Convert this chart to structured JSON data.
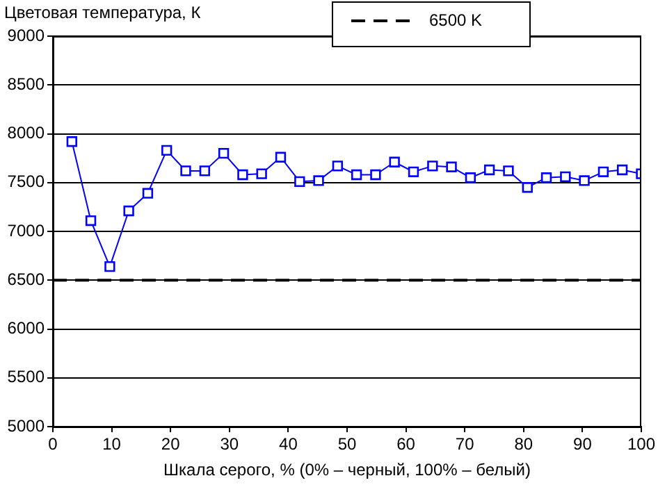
{
  "chart_data": {
    "type": "line",
    "ylabel": "Цветовая температура, К",
    "xlabel": "Шкала серого, % (0% – черный, 100% – белый)",
    "x": [
      3.23,
      6.45,
      9.68,
      12.9,
      16.13,
      19.35,
      22.58,
      25.81,
      29.03,
      32.26,
      35.48,
      38.71,
      41.94,
      45.16,
      48.39,
      51.61,
      54.84,
      58.06,
      61.29,
      64.52,
      67.74,
      70.97,
      74.19,
      77.42,
      80.65,
      83.87,
      87.1,
      90.32,
      93.55,
      96.77,
      100
    ],
    "series": [
      {
        "color": "#0000ff",
        "values": [
          7920,
          7110,
          6640,
          7210,
          7390,
          7830,
          7620,
          7620,
          7800,
          7580,
          7590,
          7760,
          7510,
          7520,
          7670,
          7580,
          7580,
          7710,
          7610,
          7670,
          7660,
          7550,
          7630,
          7620,
          7450,
          7550,
          7560,
          7520,
          7610,
          7630,
          7590
        ]
      }
    ],
    "ref_lines": [
      {
        "axis": "y",
        "value": 6500,
        "label": "6500 K",
        "color": "#000000",
        "line_style": "dashed"
      }
    ],
    "xlim": [
      0,
      100
    ],
    "xticks": [
      0,
      10,
      20,
      30,
      40,
      50,
      60,
      70,
      80,
      90,
      100
    ],
    "ylim": [
      5000,
      9000
    ],
    "yticks": [
      5000,
      5500,
      6000,
      6500,
      7000,
      7500,
      8000,
      8500,
      9000
    ],
    "grid": "y",
    "legend": "top",
    "marker": "square",
    "line_style": "solid"
  }
}
